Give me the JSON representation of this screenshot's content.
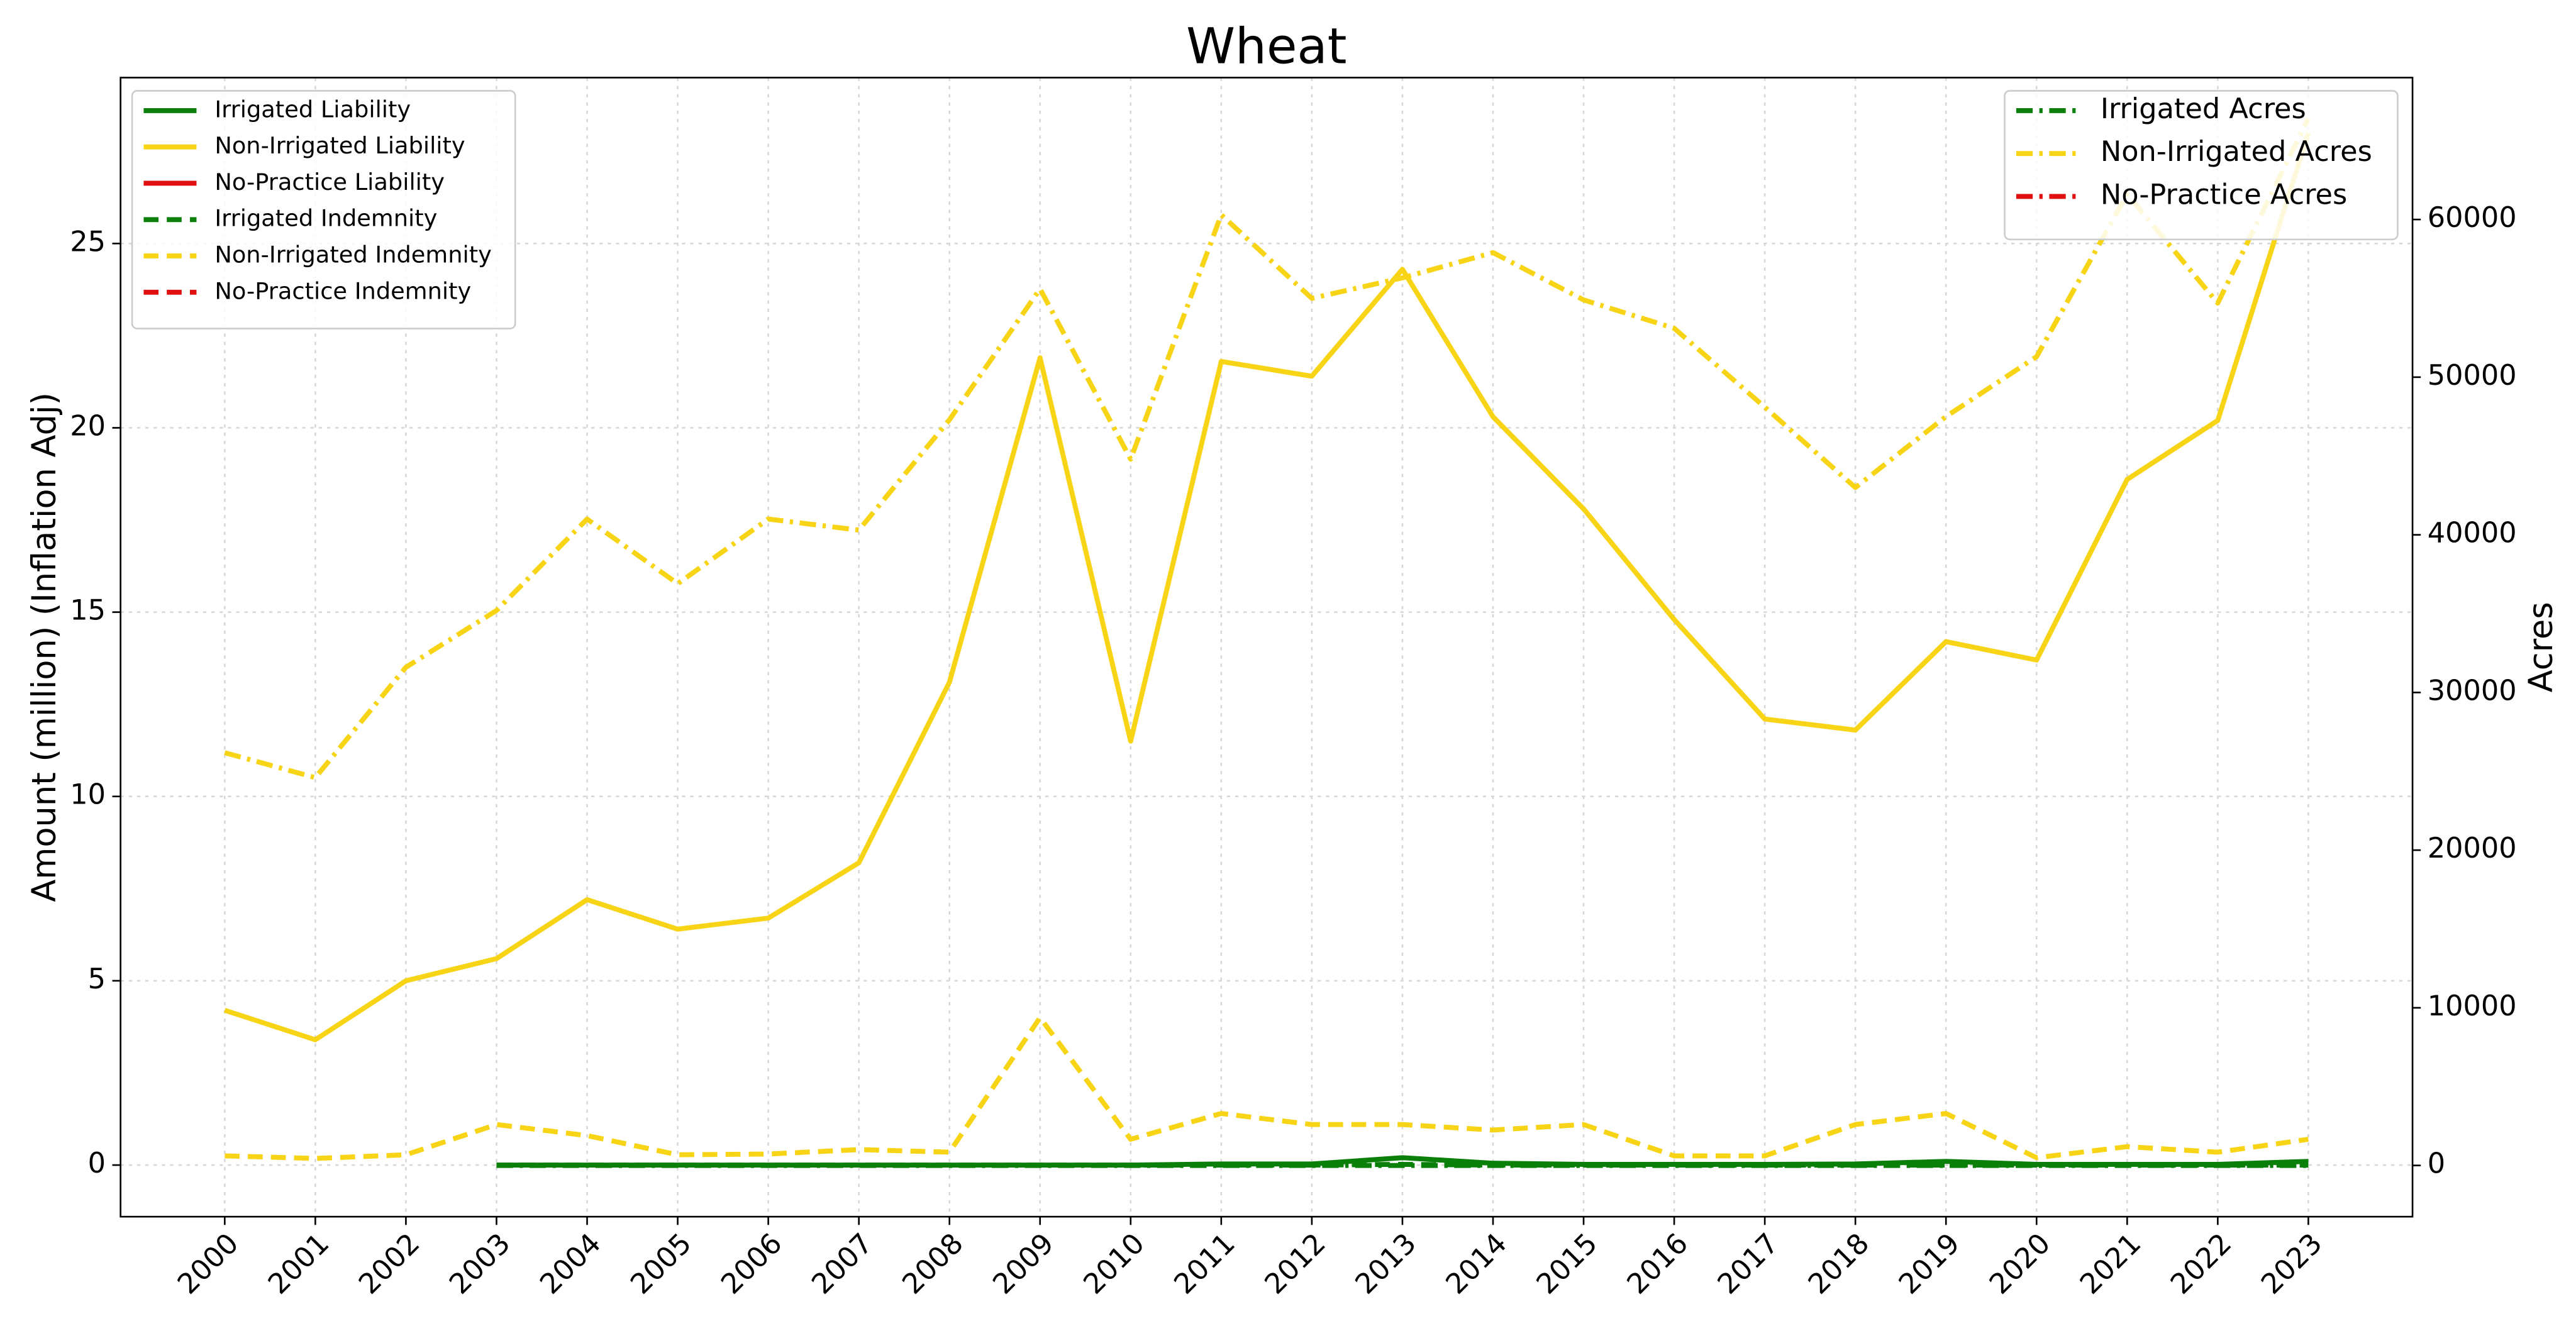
{
  "chart_data": {
    "type": "line",
    "title": "Wheat",
    "y_label": "Amount (million) (Inflation Adj)",
    "y2_label": "Acres",
    "categories": [
      "2000",
      "2001",
      "2002",
      "2003",
      "2004",
      "2005",
      "2006",
      "2007",
      "2008",
      "2009",
      "2010",
      "2011",
      "2012",
      "2013",
      "2014",
      "2015",
      "2016",
      "2017",
      "2018",
      "2019",
      "2020",
      "2021",
      "2022",
      "2023"
    ],
    "ylim": [
      -1.4,
      29.5
    ],
    "yticks": [
      0,
      5,
      10,
      15,
      20,
      25
    ],
    "y2lim": [
      -3250,
      69000
    ],
    "y2ticks": [
      0,
      10000,
      20000,
      30000,
      40000,
      50000,
      60000
    ],
    "grid": true,
    "legend": "upper left",
    "legend2": "upper right",
    "series": [
      {
        "name": "Irrigated Liability",
        "color": "#0a800a",
        "dash": "solid",
        "values": [
          null,
          null,
          null,
          0,
          0,
          0,
          0,
          0,
          0,
          0,
          0,
          0.03,
          0.03,
          0.2,
          0.05,
          0.02,
          0.02,
          0.02,
          0.03,
          0.1,
          0.02,
          0.02,
          0.02,
          0.1
        ]
      },
      {
        "name": "Non-Irrigated Liability",
        "color": "#f7d416",
        "dash": "solid",
        "values": [
          4.2,
          3.4,
          5.0,
          5.6,
          7.2,
          6.4,
          6.7,
          8.2,
          13.1,
          21.9,
          11.5,
          21.8,
          21.4,
          24.3,
          20.3,
          17.8,
          14.8,
          12.1,
          11.8,
          14.2,
          13.7,
          18.6,
          20.2,
          28.0
        ]
      },
      {
        "name": "No-Practice Liability",
        "color": "#e01010",
        "dash": "solid",
        "values": [
          null,
          null,
          null,
          null,
          null,
          null,
          null,
          null,
          null,
          null,
          null,
          null,
          null,
          null,
          null,
          null,
          null,
          null,
          null,
          null,
          null,
          null,
          null,
          null
        ]
      },
      {
        "name": "Irrigated Indemnity",
        "color": "#0a800a",
        "dash": "dashed",
        "values": [
          null,
          null,
          null,
          0,
          0,
          0,
          0,
          0,
          0,
          0,
          0,
          0,
          0,
          0.02,
          0,
          0,
          0,
          0,
          0,
          0,
          0,
          0,
          0,
          0
        ]
      },
      {
        "name": "Non-Irrigated Indemnity",
        "color": "#f7d416",
        "dash": "dashed",
        "values": [
          0.25,
          0.18,
          0.28,
          1.1,
          0.8,
          0.28,
          0.3,
          0.42,
          0.35,
          4.0,
          0.7,
          1.4,
          1.1,
          1.1,
          0.95,
          1.1,
          0.25,
          0.25,
          1.1,
          1.4,
          0.2,
          0.5,
          0.35,
          0.7
        ]
      },
      {
        "name": "No-Practice Indemnity",
        "color": "#e01010",
        "dash": "dashed",
        "values": [
          null,
          null,
          null,
          null,
          null,
          null,
          null,
          null,
          null,
          null,
          null,
          null,
          null,
          null,
          null,
          null,
          null,
          null,
          null,
          null,
          null,
          null,
          null,
          null
        ]
      },
      {
        "name": "Irrigated Acres",
        "color": "#0a800a",
        "dash": "dashdot",
        "axis": "y2",
        "values": [
          null,
          null,
          null,
          0,
          0,
          0,
          0,
          0,
          0,
          0,
          0,
          0,
          0,
          0,
          0,
          0,
          0,
          0,
          0,
          0,
          0,
          0,
          0,
          0
        ]
      },
      {
        "name": "Non-Irrigated Acres",
        "color": "#f7d416",
        "dash": "dashdot",
        "axis": "y2",
        "values": [
          26180,
          24600,
          31600,
          35200,
          41000,
          36900,
          41000,
          40300,
          47300,
          55600,
          44800,
          60300,
          55000,
          56300,
          57900,
          54900,
          53100,
          48100,
          43000,
          47500,
          51300,
          61600,
          54700,
          66400
        ]
      },
      {
        "name": "No-Practice Acres",
        "color": "#e01010",
        "dash": "dashdot",
        "axis": "y2",
        "values": [
          null,
          null,
          null,
          null,
          null,
          null,
          null,
          null,
          null,
          null,
          null,
          null,
          null,
          null,
          null,
          null,
          null,
          null,
          null,
          null,
          null,
          null,
          null,
          null
        ]
      }
    ]
  }
}
